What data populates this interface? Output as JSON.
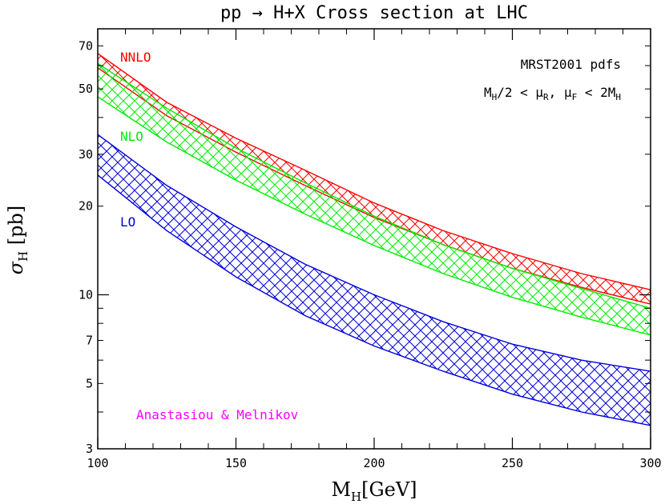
{
  "chart_data": {
    "type": "area",
    "title": "pp → H+X Cross section at LHC",
    "xlabel": {
      "main": "M",
      "sub": "H",
      "rest": "[GeV]"
    },
    "ylabel": {
      "main": "σ",
      "sub": "H",
      "rest": " [pb]"
    },
    "xlim": [
      100,
      300
    ],
    "ylim": [
      3,
      80
    ],
    "yscale": "log",
    "x_ticks": [
      100,
      150,
      200,
      250,
      300
    ],
    "y_ticks": [
      3,
      5,
      7,
      10,
      20,
      30,
      50,
      70
    ],
    "grid": false,
    "annotations": {
      "pdfs": "MRST2001 pdfs",
      "scale": {
        "a": "M",
        "a_sub": "H",
        "b": "/2 < μ",
        "b_sub": "R",
        "c": ", μ",
        "c_sub": "F",
        "d": " < 2M",
        "d_sub": "H"
      },
      "authors": "Anastasiou & Melnikov"
    },
    "x": [
      100,
      125,
      150,
      175,
      200,
      225,
      250,
      275,
      300
    ],
    "series": [
      {
        "name": "NNLO",
        "color": "#ff0000",
        "label_pos": "top-left",
        "upper": [
          66,
          45,
          34,
          26.5,
          20.5,
          16.5,
          13.8,
          11.8,
          10.4
        ],
        "lower": [
          59,
          40.5,
          30.5,
          23.5,
          18.3,
          14.8,
          12.3,
          10.6,
          9.3
        ]
      },
      {
        "name": "NLO",
        "color": "#00ee00",
        "label_pos": "mid-left",
        "upper": [
          61,
          43,
          31.5,
          24,
          18.5,
          14.8,
          12.3,
          10.5,
          9.0
        ],
        "lower": [
          47,
          33,
          24.5,
          18.8,
          14.7,
          11.8,
          9.8,
          8.4,
          7.3
        ]
      },
      {
        "name": "LO",
        "color": "#0000dd",
        "label_pos": "lower-left",
        "upper": [
          35,
          23.5,
          17,
          12.7,
          10.0,
          8.1,
          6.8,
          6.0,
          5.5
        ],
        "lower": [
          25.5,
          16.5,
          11.5,
          8.5,
          6.7,
          5.5,
          4.6,
          4.0,
          3.6
        ]
      }
    ]
  }
}
